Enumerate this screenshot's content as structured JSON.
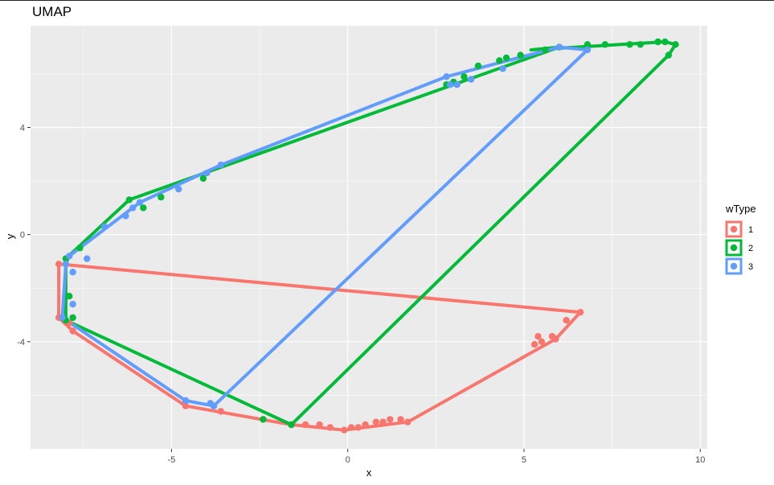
{
  "chart_data": {
    "type": "scatter",
    "title": "UMAP",
    "xlabel": "x",
    "ylabel": "y",
    "xlim": [
      -9.0,
      10.2
    ],
    "ylim": [
      -8.0,
      7.8
    ],
    "x_ticks": [
      -5,
      0,
      5,
      10
    ],
    "y_ticks": [
      -4,
      0,
      4
    ],
    "grid": true,
    "legend_placement": "right",
    "legend_title": "wType",
    "colors": {
      "1": "#F8766D",
      "2": "#00BA38",
      "3": "#619CFF",
      "panel": "#EBEBEB",
      "grid": "#FFFFFF"
    },
    "series": [
      {
        "name": "1",
        "color": "#F8766D",
        "hull": [
          [
            -8.2,
            -1.1
          ],
          [
            6.6,
            -2.9
          ],
          [
            5.9,
            -3.9
          ],
          [
            1.7,
            -7.0
          ],
          [
            -0.1,
            -7.3
          ],
          [
            -1.6,
            -7.1
          ],
          [
            -4.6,
            -6.4
          ],
          [
            -7.8,
            -3.6
          ],
          [
            -8.2,
            -3.1
          ]
        ],
        "points": [
          [
            -8.2,
            -1.1
          ],
          [
            6.6,
            -2.9
          ],
          [
            6.2,
            -3.2
          ],
          [
            5.9,
            -3.9
          ],
          [
            5.8,
            -3.8
          ],
          [
            5.5,
            -4.0
          ],
          [
            5.3,
            -4.1
          ],
          [
            5.4,
            -3.8
          ],
          [
            1.7,
            -7.0
          ],
          [
            1.5,
            -6.9
          ],
          [
            1.2,
            -6.9
          ],
          [
            1.0,
            -7.0
          ],
          [
            0.8,
            -7.0
          ],
          [
            0.5,
            -7.1
          ],
          [
            0.3,
            -7.2
          ],
          [
            -0.1,
            -7.3
          ],
          [
            0.1,
            -7.2
          ],
          [
            -0.5,
            -7.2
          ],
          [
            -0.8,
            -7.1
          ],
          [
            -1.2,
            -7.1
          ],
          [
            -1.6,
            -7.1
          ],
          [
            -3.6,
            -6.6
          ],
          [
            -4.6,
            -6.4
          ],
          [
            -7.8,
            -3.6
          ],
          [
            -7.9,
            -3.3
          ],
          [
            -8.2,
            -3.1
          ]
        ]
      },
      {
        "name": "2",
        "color": "#00BA38",
        "hull": [
          [
            -6.2,
            1.3
          ],
          [
            -8.0,
            -0.9
          ],
          [
            -8.0,
            -3.2
          ],
          [
            -1.6,
            -7.1
          ],
          [
            9.1,
            6.7
          ],
          [
            9.3,
            7.1
          ],
          [
            9.0,
            7.2
          ],
          [
            5.2,
            6.9
          ],
          [
            6.0,
            7.0
          ]
        ],
        "points": [
          [
            -6.2,
            1.3
          ],
          [
            -5.8,
            1.0
          ],
          [
            -5.3,
            1.4
          ],
          [
            -4.1,
            2.1
          ],
          [
            -7.6,
            -0.5
          ],
          [
            -8.0,
            -0.9
          ],
          [
            -7.9,
            -2.3
          ],
          [
            -7.8,
            -3.1
          ],
          [
            -8.0,
            -3.2
          ],
          [
            -1.6,
            -7.1
          ],
          [
            -2.4,
            -6.9
          ],
          [
            2.8,
            5.6
          ],
          [
            3.0,
            5.7
          ],
          [
            3.3,
            5.9
          ],
          [
            3.7,
            6.3
          ],
          [
            4.3,
            6.5
          ],
          [
            4.5,
            6.6
          ],
          [
            4.9,
            6.7
          ],
          [
            5.6,
            6.9
          ],
          [
            6.0,
            7.0
          ],
          [
            6.8,
            7.1
          ],
          [
            7.3,
            7.1
          ],
          [
            8.0,
            7.1
          ],
          [
            8.3,
            7.1
          ],
          [
            8.8,
            7.2
          ],
          [
            9.1,
            6.7
          ],
          [
            9.3,
            7.1
          ],
          [
            9.0,
            7.2
          ]
        ]
      },
      {
        "name": "3",
        "color": "#619CFF",
        "hull": [
          [
            -8.1,
            -3.1
          ],
          [
            -8.0,
            -1.1
          ],
          [
            -7.9,
            -0.8
          ],
          [
            -5.9,
            1.2
          ],
          [
            -3.6,
            2.6
          ],
          [
            2.8,
            5.9
          ],
          [
            6.0,
            7.0
          ],
          [
            6.8,
            6.9
          ],
          [
            -3.8,
            -6.4
          ],
          [
            -4.6,
            -6.2
          ]
        ],
        "points": [
          [
            -8.1,
            -3.1
          ],
          [
            -8.0,
            -1.1
          ],
          [
            -7.9,
            -0.8
          ],
          [
            -7.8,
            -1.4
          ],
          [
            -7.8,
            -2.6
          ],
          [
            -7.4,
            -0.9
          ],
          [
            -6.9,
            0.3
          ],
          [
            -6.3,
            0.7
          ],
          [
            -6.1,
            1.0
          ],
          [
            -5.9,
            1.2
          ],
          [
            -4.8,
            1.7
          ],
          [
            -4.0,
            2.3
          ],
          [
            -3.6,
            2.6
          ],
          [
            2.8,
            5.9
          ],
          [
            2.9,
            5.6
          ],
          [
            3.1,
            5.6
          ],
          [
            3.5,
            5.8
          ],
          [
            4.4,
            6.2
          ],
          [
            6.0,
            7.0
          ],
          [
            6.8,
            6.9
          ],
          [
            -3.8,
            -6.4
          ],
          [
            -4.6,
            -6.2
          ],
          [
            -3.9,
            -6.3
          ]
        ]
      }
    ]
  }
}
